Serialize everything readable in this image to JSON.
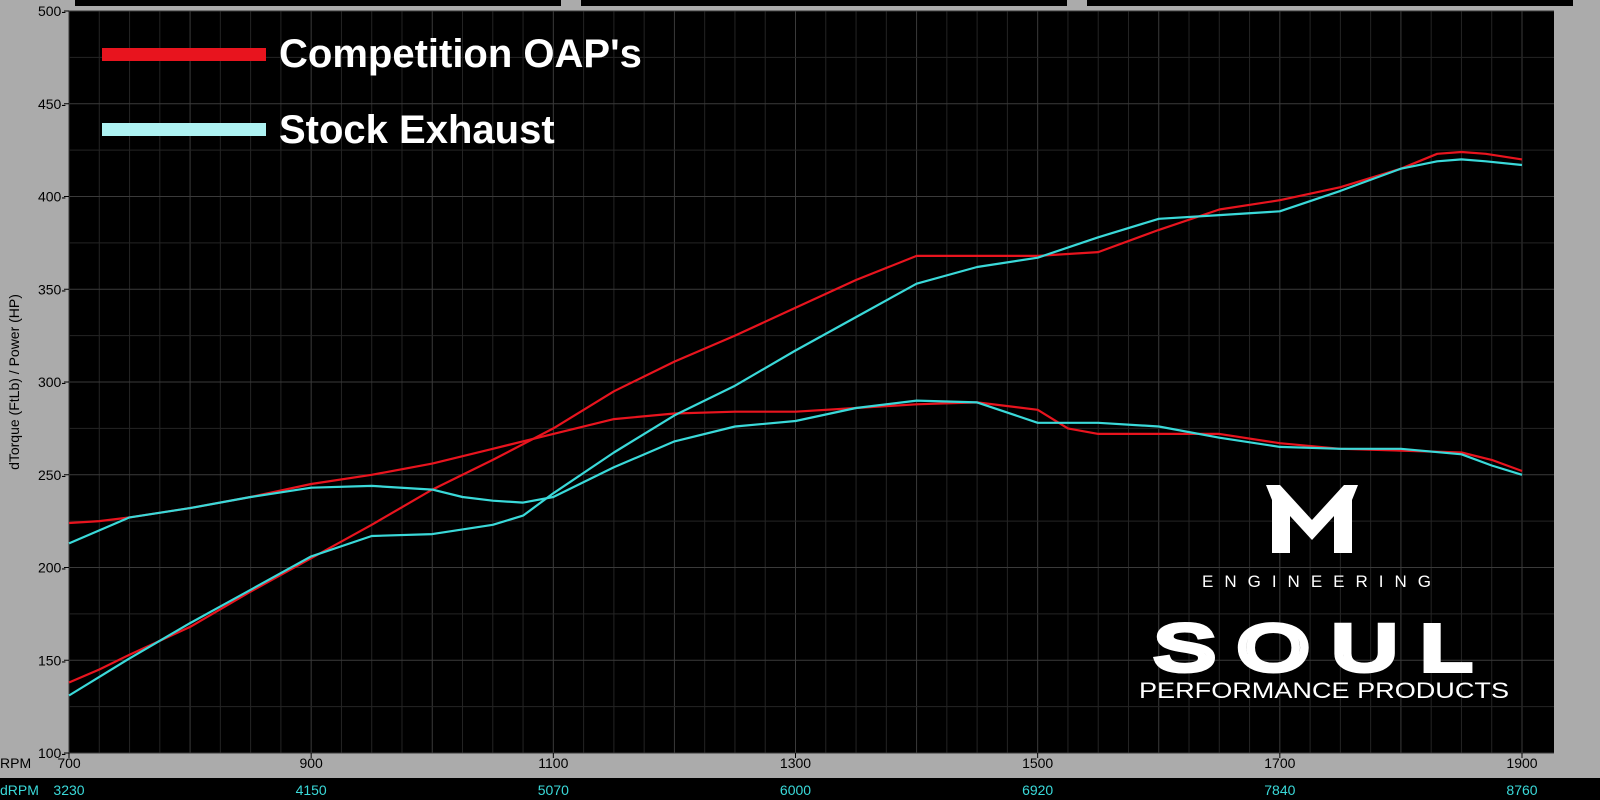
{
  "chart_data": {
    "type": "line",
    "ylabel": "dTorque (FtLb) / Power (HP)",
    "ylim": [
      100,
      500
    ],
    "yticks": [
      "100",
      "150",
      "200",
      "250",
      "300",
      "350",
      "400",
      "450",
      "500"
    ],
    "xlim": [
      700,
      1900
    ],
    "xticks": [
      "700",
      "900",
      "1100",
      "1300",
      "1500",
      "1700",
      "1900"
    ],
    "x_row_label": "RPM",
    "drpm_label": "dRPM",
    "drpm_ticks": [
      "3230",
      "4150",
      "5070",
      "6000",
      "6920",
      "7840",
      "8760"
    ],
    "grid": true,
    "legend_position": "top-left",
    "series": [
      {
        "name": "Competition OAP's",
        "color": "#e8141e",
        "curves": [
          {
            "label": "power",
            "x": [
              700,
              725,
              750,
              800,
              850,
              900,
              950,
              1000,
              1050,
              1100,
              1150,
              1200,
              1250,
              1300,
              1350,
              1400,
              1450,
              1500,
              1550,
              1600,
              1650,
              1700,
              1750,
              1800,
              1830,
              1850,
              1870,
              1900
            ],
            "y": [
              138,
              145,
              153,
              168,
              187,
              205,
              223,
              242,
              258,
              275,
              295,
              311,
              325,
              340,
              355,
              368,
              368,
              368,
              370,
              382,
              393,
              398,
              405,
              415,
              423,
              424,
              423,
              420
            ]
          },
          {
            "label": "torque",
            "x": [
              700,
              725,
              750,
              800,
              850,
              900,
              950,
              1000,
              1050,
              1100,
              1150,
              1200,
              1250,
              1300,
              1350,
              1400,
              1450,
              1500,
              1525,
              1550,
              1600,
              1650,
              1700,
              1750,
              1800,
              1850,
              1875,
              1900
            ],
            "y": [
              224,
              225,
              227,
              232,
              238,
              245,
              250,
              256,
              264,
              272,
              280,
              283,
              284,
              284,
              286,
              288,
              289,
              285,
              275,
              272,
              272,
              272,
              267,
              264,
              263,
              262,
              258,
              252
            ]
          }
        ]
      },
      {
        "name": "Stock Exhaust",
        "color": "#3ad9d9",
        "curves": [
          {
            "label": "power",
            "x": [
              700,
              725,
              750,
              800,
              850,
              900,
              950,
              1000,
              1050,
              1075,
              1100,
              1150,
              1200,
              1250,
              1300,
              1350,
              1400,
              1450,
              1500,
              1550,
              1600,
              1650,
              1700,
              1750,
              1800,
              1830,
              1850,
              1870,
              1900
            ],
            "y": [
              131,
              141,
              151,
              170,
              188,
              206,
              217,
              218,
              223,
              228,
              240,
              262,
              282,
              298,
              317,
              335,
              353,
              362,
              367,
              378,
              388,
              390,
              392,
              403,
              415,
              419,
              420,
              419,
              417
            ]
          },
          {
            "label": "torque",
            "x": [
              700,
              725,
              750,
              800,
              850,
              900,
              950,
              1000,
              1025,
              1050,
              1075,
              1100,
              1150,
              1200,
              1250,
              1300,
              1350,
              1400,
              1450,
              1500,
              1525,
              1550,
              1600,
              1650,
              1700,
              1750,
              1800,
              1850,
              1875,
              1900
            ],
            "y": [
              213,
              220,
              227,
              232,
              238,
              243,
              244,
              242,
              238,
              236,
              235,
              238,
              254,
              268,
              276,
              279,
              286,
              290,
              289,
              278,
              278,
              278,
              276,
              270,
              265,
              264,
              264,
              261,
              255,
              250
            ]
          }
        ]
      }
    ]
  },
  "logo": {
    "mark": "M",
    "engineering": "ENGINEERING",
    "brand": "SOUL",
    "tagline": "PERFORMANCE PRODUCTS"
  }
}
